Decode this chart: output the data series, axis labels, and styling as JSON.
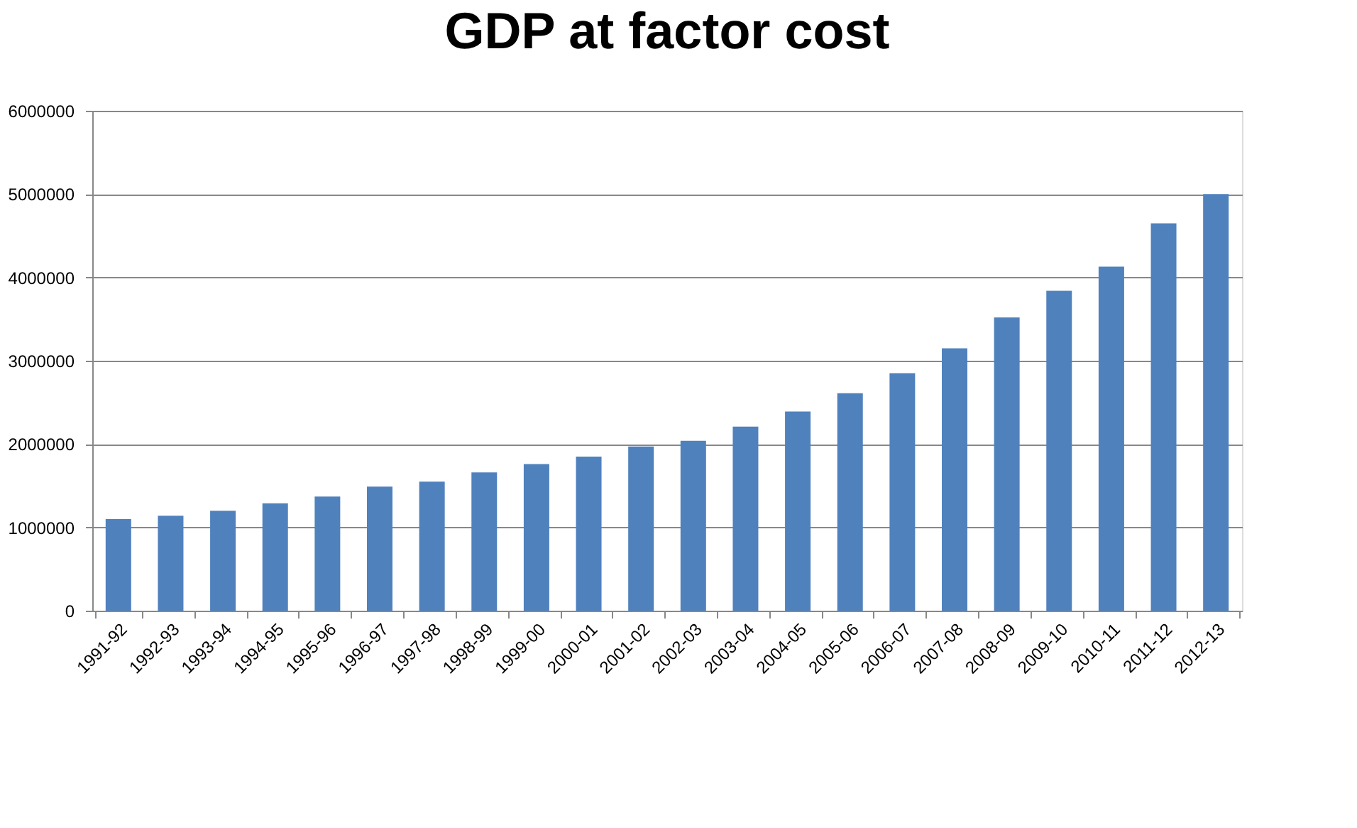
{
  "chart_data": {
    "type": "bar",
    "title": "GDP at factor cost",
    "categories": [
      "1991-92",
      "1992-93",
      "1993-94",
      "1994-95",
      "1995-96",
      "1996-97",
      "1997-98",
      "1998-99",
      "1999-00",
      "2000-01",
      "2001-02",
      "2002-03",
      "2003-04",
      "2004-05",
      "2005-06",
      "2006-07",
      "2007-08",
      "2008-09",
      "2009-10",
      "2010-11",
      "2011-12",
      "2012-13"
    ],
    "values": [
      1100000,
      1140000,
      1200000,
      1290000,
      1370000,
      1490000,
      1550000,
      1660000,
      1760000,
      1850000,
      1970000,
      2040000,
      2210000,
      2390000,
      2610000,
      2850000,
      3150000,
      3520000,
      3840000,
      4130000,
      4650000,
      5000000
    ],
    "color": "#4f81bd",
    "ylim": [
      0,
      6000000
    ],
    "yticks": [
      0,
      1000000,
      2000000,
      3000000,
      4000000,
      5000000,
      6000000
    ],
    "grid": "y"
  }
}
